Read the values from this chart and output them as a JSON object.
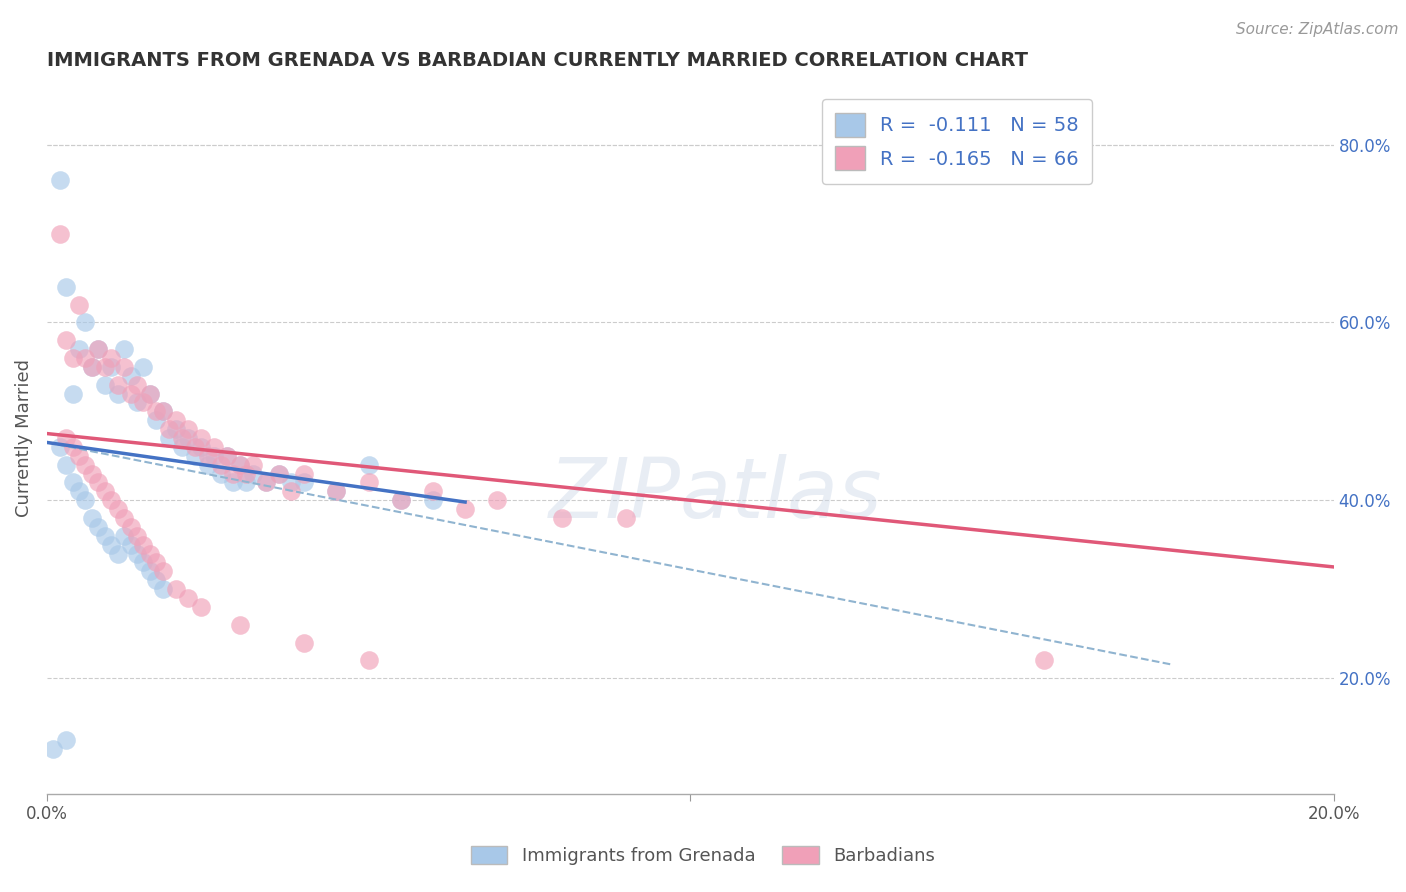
{
  "title": "IMMIGRANTS FROM GRENADA VS BARBADIAN CURRENTLY MARRIED CORRELATION CHART",
  "source_text": "Source: ZipAtlas.com",
  "ylabel": "Currently Married",
  "legend_label1": "Immigrants from Grenada",
  "legend_label2": "Barbadians",
  "r1": -0.111,
  "n1": 58,
  "r2": -0.165,
  "n2": 66,
  "color_blue": "#a8c8e8",
  "color_pink": "#f0a0b8",
  "color_blue_line": "#4472c4",
  "color_pink_line": "#e05878",
  "color_blue_text": "#4472c4",
  "color_dashed": "#90b4d0",
  "xlim": [
    0.0,
    0.2
  ],
  "ylim": [
    0.07,
    0.87
  ],
  "right_yticks": [
    0.2,
    0.4,
    0.6,
    0.8
  ],
  "right_ytick_labels": [
    "20.0%",
    "40.0%",
    "60.0%",
    "80.0%"
  ],
  "blue_scatter_x": [
    0.002,
    0.003,
    0.004,
    0.005,
    0.006,
    0.007,
    0.008,
    0.009,
    0.01,
    0.011,
    0.012,
    0.013,
    0.014,
    0.015,
    0.016,
    0.017,
    0.018,
    0.019,
    0.02,
    0.021,
    0.022,
    0.023,
    0.024,
    0.025,
    0.026,
    0.027,
    0.028,
    0.029,
    0.03,
    0.031,
    0.032,
    0.034,
    0.036,
    0.038,
    0.04,
    0.045,
    0.05,
    0.055,
    0.06,
    0.002,
    0.003,
    0.004,
    0.005,
    0.006,
    0.007,
    0.008,
    0.009,
    0.01,
    0.011,
    0.012,
    0.013,
    0.014,
    0.015,
    0.016,
    0.017,
    0.018,
    0.001,
    0.003
  ],
  "blue_scatter_y": [
    0.76,
    0.64,
    0.52,
    0.57,
    0.6,
    0.55,
    0.57,
    0.53,
    0.55,
    0.52,
    0.57,
    0.54,
    0.51,
    0.55,
    0.52,
    0.49,
    0.5,
    0.47,
    0.48,
    0.46,
    0.47,
    0.45,
    0.46,
    0.44,
    0.45,
    0.43,
    0.45,
    0.42,
    0.44,
    0.42,
    0.43,
    0.42,
    0.43,
    0.42,
    0.42,
    0.41,
    0.44,
    0.4,
    0.4,
    0.46,
    0.44,
    0.42,
    0.41,
    0.4,
    0.38,
    0.37,
    0.36,
    0.35,
    0.34,
    0.36,
    0.35,
    0.34,
    0.33,
    0.32,
    0.31,
    0.3,
    0.12,
    0.13
  ],
  "pink_scatter_x": [
    0.002,
    0.003,
    0.004,
    0.005,
    0.006,
    0.007,
    0.008,
    0.009,
    0.01,
    0.011,
    0.012,
    0.013,
    0.014,
    0.015,
    0.016,
    0.017,
    0.018,
    0.019,
    0.02,
    0.021,
    0.022,
    0.023,
    0.024,
    0.025,
    0.026,
    0.027,
    0.028,
    0.029,
    0.03,
    0.031,
    0.032,
    0.034,
    0.036,
    0.038,
    0.04,
    0.045,
    0.05,
    0.055,
    0.06,
    0.065,
    0.07,
    0.08,
    0.09,
    0.003,
    0.004,
    0.005,
    0.006,
    0.007,
    0.008,
    0.009,
    0.01,
    0.011,
    0.012,
    0.013,
    0.014,
    0.015,
    0.016,
    0.017,
    0.018,
    0.02,
    0.022,
    0.024,
    0.03,
    0.04,
    0.05,
    0.155
  ],
  "pink_scatter_y": [
    0.7,
    0.58,
    0.56,
    0.62,
    0.56,
    0.55,
    0.57,
    0.55,
    0.56,
    0.53,
    0.55,
    0.52,
    0.53,
    0.51,
    0.52,
    0.5,
    0.5,
    0.48,
    0.49,
    0.47,
    0.48,
    0.46,
    0.47,
    0.45,
    0.46,
    0.44,
    0.45,
    0.43,
    0.44,
    0.43,
    0.44,
    0.42,
    0.43,
    0.41,
    0.43,
    0.41,
    0.42,
    0.4,
    0.41,
    0.39,
    0.4,
    0.38,
    0.38,
    0.47,
    0.46,
    0.45,
    0.44,
    0.43,
    0.42,
    0.41,
    0.4,
    0.39,
    0.38,
    0.37,
    0.36,
    0.35,
    0.34,
    0.33,
    0.32,
    0.3,
    0.29,
    0.28,
    0.26,
    0.24,
    0.22,
    0.22
  ],
  "blue_line_x": [
    0.0,
    0.065
  ],
  "blue_line_y": [
    0.465,
    0.398
  ],
  "pink_line_x": [
    0.0,
    0.2
  ],
  "pink_line_y": [
    0.475,
    0.325
  ],
  "dashed_line_x": [
    0.0,
    0.175
  ],
  "dashed_line_y": [
    0.465,
    0.215
  ],
  "watermark": "ZIPatlas",
  "background_color": "#ffffff"
}
